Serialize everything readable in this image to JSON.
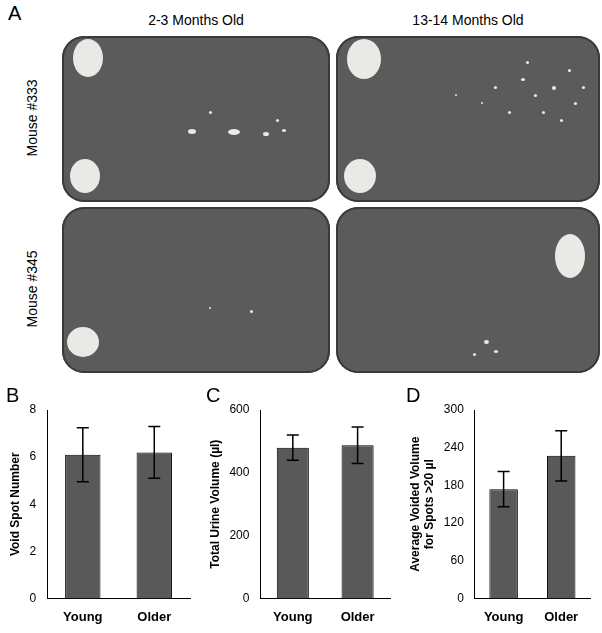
{
  "panel_a": {
    "panel": "A",
    "columns": [
      "2-3 Months Old",
      "13-14 Months Old"
    ],
    "rows": [
      "Mouse #333",
      "Mouse #345"
    ]
  },
  "chart_data": [
    {
      "panel": "B",
      "type": "bar",
      "categories": [
        "Young",
        "Older"
      ],
      "values": [
        6.1,
        6.2
      ],
      "errors": [
        1.15,
        1.1
      ],
      "color": "#595959",
      "y_label": "Void Spot Number",
      "ylim": [
        0,
        8
      ],
      "yticks": [
        0,
        2,
        4,
        6,
        8
      ],
      "grid": false
    },
    {
      "panel": "C",
      "type": "bar",
      "categories": [
        "Young",
        "Older"
      ],
      "values": [
        480,
        488
      ],
      "errors": [
        40,
        58
      ],
      "color": "#595959",
      "y_label": "Total Urine Volume (µl)",
      "ylim": [
        0,
        600
      ],
      "yticks": [
        0,
        200,
        400,
        600
      ],
      "grid": false
    },
    {
      "panel": "D",
      "type": "bar",
      "categories": [
        "Young",
        "Older"
      ],
      "values": [
        174,
        227
      ],
      "errors": [
        28,
        40
      ],
      "color": "#595959",
      "y_label": "Average Voided Volume for Spots >20 µl",
      "ylim": [
        0,
        300
      ],
      "yticks": [
        0,
        60,
        120,
        180,
        240,
        300
      ],
      "grid": false
    }
  ]
}
